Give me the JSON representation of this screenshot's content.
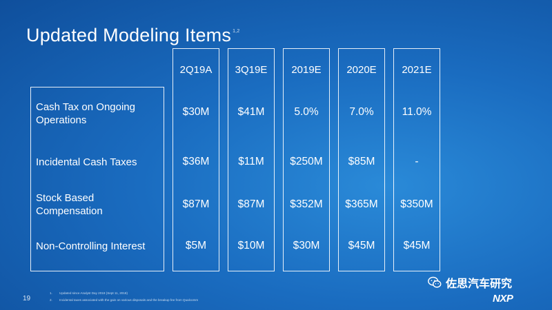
{
  "slide": {
    "title": "Updated Modeling Items",
    "title_superscript": "1,2",
    "page_number": "19"
  },
  "columns": [
    "2Q19A",
    "3Q19E",
    "2019E",
    "2020E",
    "2021E"
  ],
  "rows": [
    {
      "label": "Cash Tax on Ongoing Operations",
      "label_line1": "Cash Tax on Ongoing",
      "label_line2": "Operations",
      "values": [
        "$30M",
        "$41M",
        "5.0%",
        "7.0%",
        "11.0%"
      ]
    },
    {
      "label": "Incidental Cash Taxes",
      "label_line1": "Incidental Cash Taxes",
      "label_line2": "",
      "values": [
        "$36M",
        "$11M",
        "$250M",
        "$85M",
        "-"
      ]
    },
    {
      "label": "Stock Based Compensation",
      "label_line1": "Stock Based",
      "label_line2": "Compensation",
      "values": [
        "$87M",
        "$87M",
        "$352M",
        "$365M",
        "$350M"
      ]
    },
    {
      "label": "Non-Controlling Interest",
      "label_line1": "Non-Controlling Interest",
      "label_line2": "",
      "values": [
        "$5M",
        "$10M",
        "$30M",
        "$45M",
        "$45M"
      ]
    }
  ],
  "footnotes": [
    {
      "num": "1.",
      "text": "Updated since Analyst Day 2018 (Sept 11, 2018)"
    },
    {
      "num": "2.",
      "text": "Incidental taxes associated with the gain on various disposals and the breakup fee from Qualcomm"
    }
  ],
  "watermark": {
    "text": "佐思汽车研究",
    "icon": "wechat-icon"
  },
  "logo": {
    "text": "NXP"
  },
  "colors": {
    "background": "#1a6cc0",
    "foreground": "#ffffff"
  }
}
